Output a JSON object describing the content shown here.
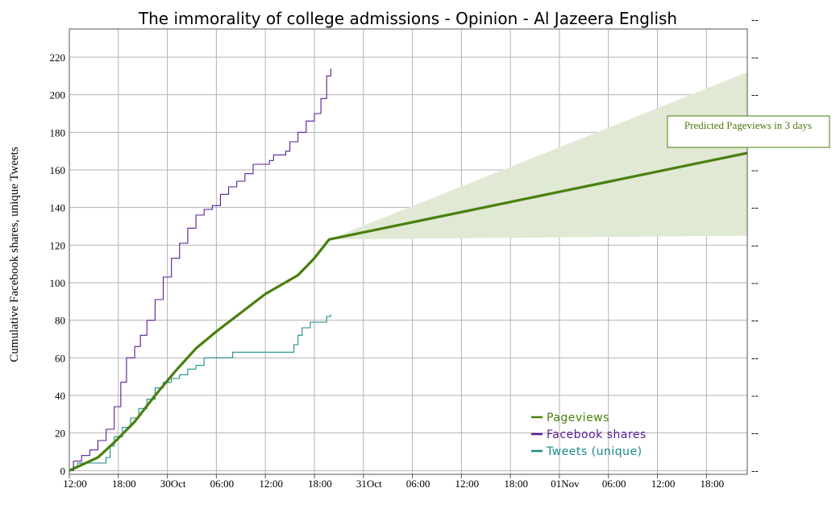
{
  "chart_data": {
    "type": "line",
    "title": "The immorality of college admissions - Opinion - Al Jazeera English",
    "ylabel": "Cumulative Facebook shares, unique Tweets",
    "ylim": [
      -2,
      235
    ],
    "y_ticks": [
      0,
      20,
      40,
      60,
      80,
      100,
      120,
      140,
      160,
      180,
      200,
      220
    ],
    "right_tick_labels": [
      "--",
      "--",
      "--",
      "--",
      "--",
      "--",
      "--",
      "--",
      "--",
      "--",
      "--",
      "--",
      "--"
    ],
    "x_unit": "hours since 29 Oct 12:00",
    "xlim": [
      0,
      83
    ],
    "x_ticks": [
      {
        "x": 0,
        "label": "12:00"
      },
      {
        "x": 6,
        "label": "18:00"
      },
      {
        "x": 12,
        "label": "30Oct"
      },
      {
        "x": 18,
        "label": "06:00"
      },
      {
        "x": 24,
        "label": "12:00"
      },
      {
        "x": 30,
        "label": "18:00"
      },
      {
        "x": 36,
        "label": "31Oct"
      },
      {
        "x": 42,
        "label": "06:00"
      },
      {
        "x": 48,
        "label": "12:00"
      },
      {
        "x": 54,
        "label": "18:00"
      },
      {
        "x": 60,
        "label": "01Nov"
      },
      {
        "x": 66,
        "label": "06:00"
      },
      {
        "x": 72,
        "label": "12:00"
      },
      {
        "x": 78,
        "label": "18:00"
      }
    ],
    "series": [
      {
        "name": "Pageviews",
        "color": "#4a7f0e",
        "step": false,
        "points": [
          [
            0,
            0
          ],
          [
            1.5,
            3
          ],
          [
            3.5,
            7
          ],
          [
            5.5,
            15
          ],
          [
            8,
            26
          ],
          [
            10.5,
            40
          ],
          [
            13,
            53
          ],
          [
            15.5,
            65
          ],
          [
            18,
            74
          ],
          [
            21,
            84
          ],
          [
            24,
            94
          ],
          [
            26,
            99
          ],
          [
            28,
            104
          ],
          [
            30,
            113
          ],
          [
            31.8,
            123
          ],
          [
            83,
            169
          ]
        ]
      },
      {
        "name": "Facebook shares",
        "color": "#5a1a96",
        "step": true,
        "points": [
          [
            0,
            0
          ],
          [
            0.5,
            5
          ],
          [
            1.5,
            8
          ],
          [
            2.5,
            11
          ],
          [
            3.5,
            16
          ],
          [
            4.5,
            22
          ],
          [
            5.5,
            34
          ],
          [
            6.3,
            47
          ],
          [
            7,
            60
          ],
          [
            8,
            66
          ],
          [
            8.7,
            72
          ],
          [
            9.5,
            80
          ],
          [
            10.5,
            91
          ],
          [
            11.5,
            103
          ],
          [
            12.5,
            113
          ],
          [
            13.5,
            121
          ],
          [
            14.5,
            129
          ],
          [
            15.5,
            136
          ],
          [
            16.5,
            139
          ],
          [
            17.5,
            141
          ],
          [
            18.5,
            147
          ],
          [
            19.5,
            151
          ],
          [
            20.5,
            154
          ],
          [
            21.5,
            158
          ],
          [
            22.5,
            163
          ],
          [
            24.5,
            165
          ],
          [
            25,
            168
          ],
          [
            26.5,
            170
          ],
          [
            27,
            175
          ],
          [
            28,
            180
          ],
          [
            29,
            186
          ],
          [
            30,
            190
          ],
          [
            30.8,
            198
          ],
          [
            31.5,
            210
          ],
          [
            32,
            214
          ]
        ]
      },
      {
        "name": "Tweets (unique)",
        "color": "#1a8a8a",
        "step": true,
        "points": [
          [
            0,
            0
          ],
          [
            0.5,
            2
          ],
          [
            1,
            4
          ],
          [
            3.5,
            4
          ],
          [
            4.5,
            7
          ],
          [
            5,
            13
          ],
          [
            5.5,
            18
          ],
          [
            6.5,
            23
          ],
          [
            7.5,
            28
          ],
          [
            8.5,
            33
          ],
          [
            9.5,
            38
          ],
          [
            10.5,
            44
          ],
          [
            11.5,
            47
          ],
          [
            12.5,
            49
          ],
          [
            13.5,
            51
          ],
          [
            14.5,
            54
          ],
          [
            15.5,
            56
          ],
          [
            16.5,
            60
          ],
          [
            19.5,
            60
          ],
          [
            20,
            63
          ],
          [
            27,
            63
          ],
          [
            27.5,
            67
          ],
          [
            28,
            72
          ],
          [
            28.5,
            76
          ],
          [
            29.5,
            79
          ],
          [
            31.5,
            82
          ],
          [
            32,
            83
          ]
        ]
      }
    ],
    "prediction_band": {
      "color": "#dfe9d3",
      "upper": [
        [
          31.8,
          123
        ],
        [
          83,
          212
        ]
      ],
      "lower": [
        [
          31.8,
          123
        ],
        [
          83,
          125
        ]
      ]
    },
    "callout": "Predicted Pageviews in 3 days",
    "legend_position": "bottom-right",
    "grid": true
  }
}
